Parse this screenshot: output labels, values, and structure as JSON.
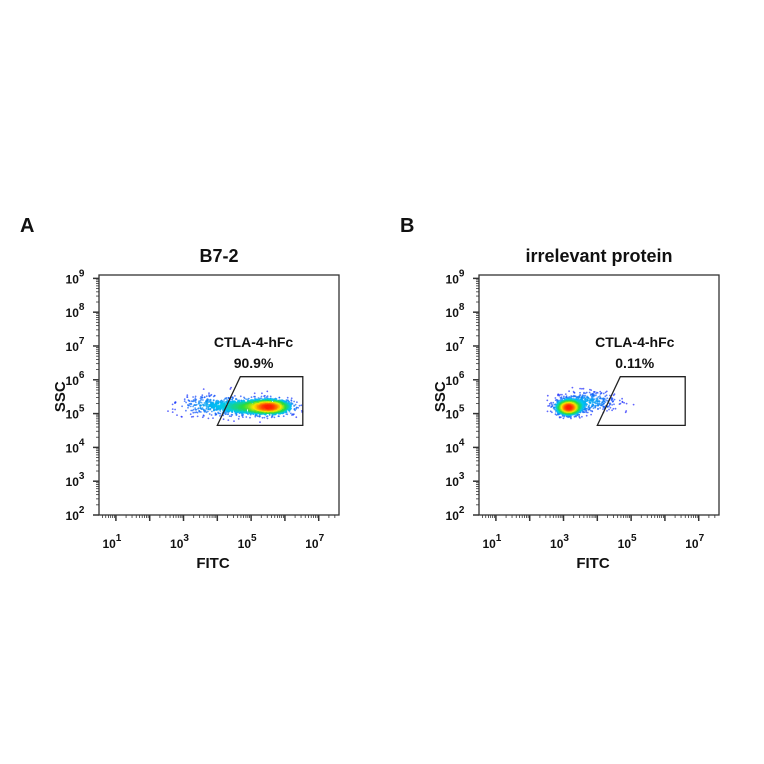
{
  "chart_data": [
    {
      "type": "scatter",
      "panel_letter": "A",
      "title": "B7-2",
      "xlabel": "FITC",
      "ylabel": "SSC",
      "x_scale": "log",
      "y_scale": "log",
      "xlim_log10": [
        0.5,
        7.6
      ],
      "ylim_log10": [
        2,
        9.1
      ],
      "x_ticks": [
        {
          "base": "10",
          "exp": "1",
          "v": 1
        },
        {
          "base": "10",
          "exp": "3",
          "v": 3
        },
        {
          "base": "10",
          "exp": "5",
          "v": 5
        },
        {
          "base": "10",
          "exp": "7",
          "v": 7
        }
      ],
      "y_ticks": [
        {
          "base": "10",
          "exp": "2",
          "v": 2
        },
        {
          "base": "10",
          "exp": "3",
          "v": 3
        },
        {
          "base": "10",
          "exp": "4",
          "v": 4
        },
        {
          "base": "10",
          "exp": "5",
          "v": 5
        },
        {
          "base": "10",
          "exp": "6",
          "v": 6
        },
        {
          "base": "10",
          "exp": "7",
          "v": 7
        },
        {
          "base": "10",
          "exp": "8",
          "v": 8
        },
        {
          "base": "10",
          "exp": "9",
          "v": 9
        }
      ],
      "gate": {
        "name": "CTLA-4-hFc",
        "percent": "90.9%",
        "vertices_log10": [
          [
            4.0,
            4.65
          ],
          [
            4.68,
            6.09
          ],
          [
            6.53,
            6.09
          ],
          [
            6.53,
            4.65
          ]
        ]
      },
      "population_log10": [
        {
          "x": 5.55,
          "y": 5.2,
          "sx": 0.35,
          "sy": 0.12,
          "w": 0.55
        },
        {
          "x": 4.8,
          "y": 5.2,
          "sx": 0.45,
          "sy": 0.13,
          "w": 0.27
        },
        {
          "x": 3.8,
          "y": 5.25,
          "sx": 0.5,
          "sy": 0.16,
          "w": 0.18
        }
      ],
      "events_shown": 1600
    },
    {
      "type": "scatter",
      "panel_letter": "B",
      "title": "irrelevant protein",
      "xlabel": "FITC",
      "ylabel": "SSC",
      "x_scale": "log",
      "y_scale": "log",
      "xlim_log10": [
        0.5,
        7.6
      ],
      "ylim_log10": [
        2,
        9.1
      ],
      "x_ticks": [
        {
          "base": "10",
          "exp": "1",
          "v": 1
        },
        {
          "base": "10",
          "exp": "3",
          "v": 3
        },
        {
          "base": "10",
          "exp": "5",
          "v": 5
        },
        {
          "base": "10",
          "exp": "7",
          "v": 7
        }
      ],
      "y_ticks": [
        {
          "base": "10",
          "exp": "2",
          "v": 2
        },
        {
          "base": "10",
          "exp": "3",
          "v": 3
        },
        {
          "base": "10",
          "exp": "4",
          "v": 4
        },
        {
          "base": "10",
          "exp": "5",
          "v": 5
        },
        {
          "base": "10",
          "exp": "6",
          "v": 6
        },
        {
          "base": "10",
          "exp": "7",
          "v": 7
        },
        {
          "base": "10",
          "exp": "8",
          "v": 8
        },
        {
          "base": "10",
          "exp": "9",
          "v": 9
        }
      ],
      "gate": {
        "name": "CTLA-4-hFc",
        "percent": "0.11%",
        "vertices_log10": [
          [
            4.0,
            4.65
          ],
          [
            4.68,
            6.09
          ],
          [
            6.6,
            6.09
          ],
          [
            6.6,
            4.65
          ]
        ]
      },
      "population_log10": [
        {
          "x": 3.15,
          "y": 5.18,
          "sx": 0.2,
          "sy": 0.12,
          "w": 0.7
        },
        {
          "x": 3.75,
          "y": 5.35,
          "sx": 0.4,
          "sy": 0.15,
          "w": 0.3
        }
      ],
      "events_shown": 1400
    }
  ],
  "colors": {
    "low": "#1a1aff",
    "mid": "#00e0e0",
    "green": "#22dd22",
    "yellow": "#ffee00",
    "high": "#ff2200"
  }
}
